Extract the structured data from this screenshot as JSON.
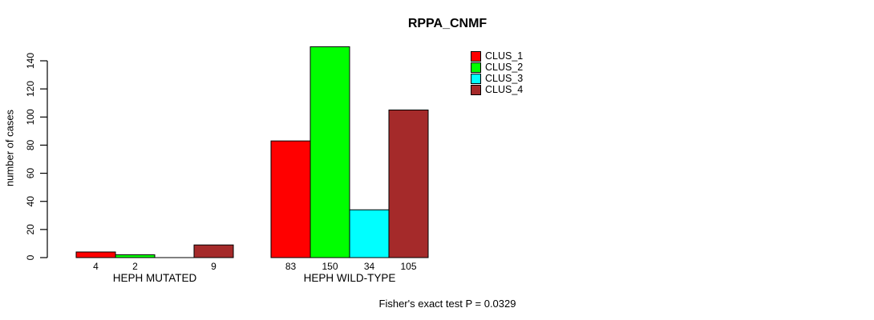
{
  "chart_data": {
    "type": "bar",
    "title": "RPPA_CNMF",
    "ylabel": "number of cases",
    "xlabel": "",
    "categories": [
      "HEPH MUTATED",
      "HEPH WILD-TYPE"
    ],
    "series": [
      {
        "name": "CLUS_1",
        "color": "#FF0000",
        "values": [
          4,
          83
        ]
      },
      {
        "name": "CLUS_2",
        "color": "#00FF00",
        "values": [
          2,
          150
        ]
      },
      {
        "name": "CLUS_3",
        "color": "#00FFFF",
        "values": [
          0,
          34
        ]
      },
      {
        "name": "CLUS_4",
        "color": "#A52A2A",
        "values": [
          9,
          105
        ]
      }
    ],
    "bar_value_labels": [
      [
        "4",
        "2",
        "",
        "9"
      ],
      [
        "83",
        "150",
        "34",
        "105"
      ]
    ],
    "yticks": [
      0,
      20,
      40,
      60,
      80,
      100,
      120,
      140
    ],
    "ylim": [
      0,
      150
    ],
    "grid": false,
    "legend_position": "top-right",
    "legend_labels": [
      "CLUS_1",
      "CLUS_2",
      "CLUS_3",
      "CLUS_4"
    ],
    "annotation": "Fisher's exact test P = 0.0329",
    "axis_color": "#000000",
    "background_color": "#FFFFFF"
  }
}
